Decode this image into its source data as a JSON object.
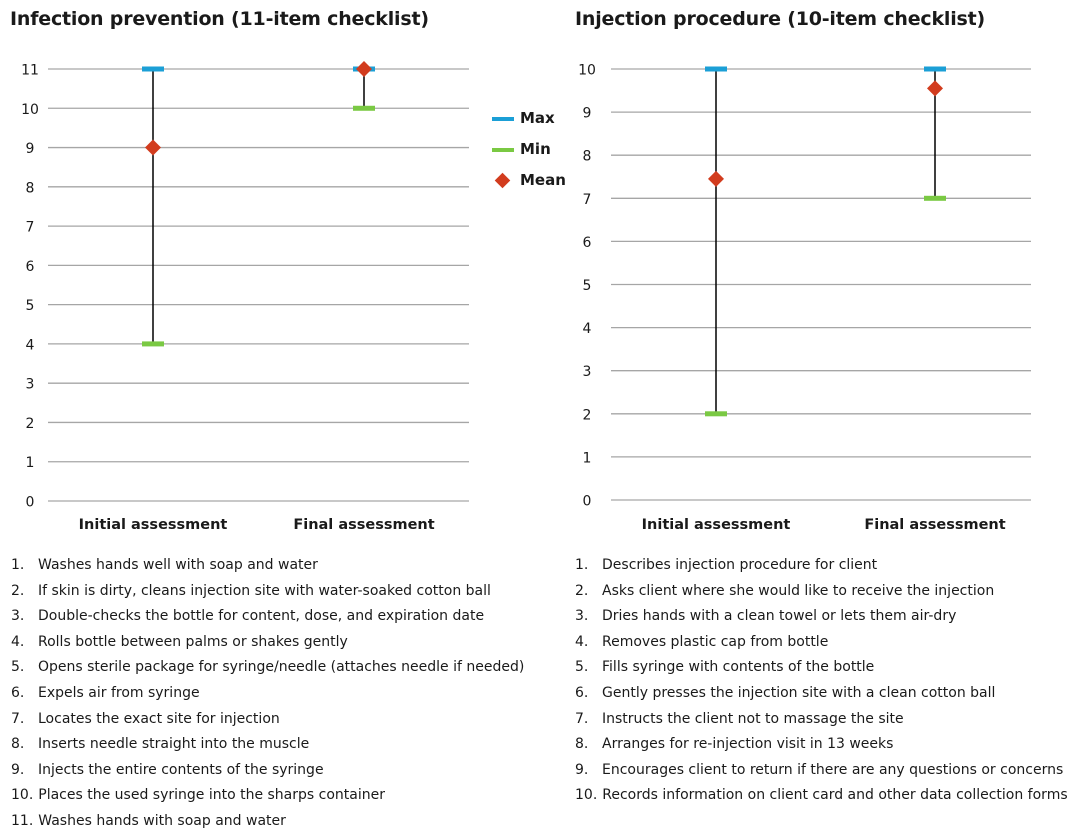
{
  "colors": {
    "max": "#1b9fd6",
    "min": "#7ac943",
    "mean": "#d23c1e",
    "gridline": "#a6a6a6",
    "range_line": "#000000"
  },
  "legend": [
    {
      "label": "Max",
      "marker": "dash",
      "color": "#1b9fd6"
    },
    {
      "label": "Min",
      "marker": "dash",
      "color": "#7ac943"
    },
    {
      "label": "Mean",
      "marker": "diamond",
      "color": "#d23c1e"
    }
  ],
  "chart_data": [
    {
      "type": "range",
      "title": "Infection prevention (11-item checklist)",
      "categories": [
        "Initial assessment",
        "Final assessment"
      ],
      "series": [
        {
          "name": "Max",
          "values": [
            11,
            11
          ]
        },
        {
          "name": "Min",
          "values": [
            4,
            10
          ]
        },
        {
          "name": "Mean",
          "values": [
            9,
            11
          ]
        }
      ],
      "ylim": [
        0,
        11
      ],
      "yticks": [
        0,
        1,
        2,
        3,
        4,
        5,
        6,
        7,
        8,
        9,
        10,
        11
      ],
      "grid": true,
      "legend_position": "right",
      "checklist": [
        "Washes hands well with soap and water",
        "If skin is dirty, cleans injection site with water-soaked cotton ball",
        "Double-checks the bottle for content, dose, and expiration date",
        "Rolls bottle between palms or shakes gently",
        "Opens sterile package for syringe/needle (attaches needle if needed)",
        "Expels air from syringe",
        "Locates the exact site for injection",
        "Inserts needle straight into the muscle",
        "Injects the entire contents of the syringe",
        "Places the used syringe into the sharps container",
        "Washes hands with soap and water"
      ]
    },
    {
      "type": "range",
      "title": "Injection procedure (10-item checklist)",
      "categories": [
        "Initial assessment",
        "Final assessment"
      ],
      "series": [
        {
          "name": "Max",
          "values": [
            10,
            10
          ]
        },
        {
          "name": "Min",
          "values": [
            2,
            7
          ]
        },
        {
          "name": "Mean",
          "values": [
            7.45,
            9.55
          ]
        }
      ],
      "ylim": [
        0,
        10
      ],
      "yticks": [
        0,
        1,
        2,
        3,
        4,
        5,
        6,
        7,
        8,
        9,
        10
      ],
      "grid": true,
      "checklist": [
        "Describes injection procedure for client",
        "Asks client where she would like to receive the injection",
        "Dries hands with a clean towel or lets them air-dry",
        "Removes plastic cap from bottle",
        "Fills syringe with contents of the bottle",
        "Gently presses the injection site with a clean cotton ball",
        "Instructs the client not to massage the site",
        "Arranges for re-injection visit in 13 weeks",
        "Encourages client to return if there are any questions or concerns",
        "Records information on client card and other data collection forms"
      ]
    }
  ]
}
